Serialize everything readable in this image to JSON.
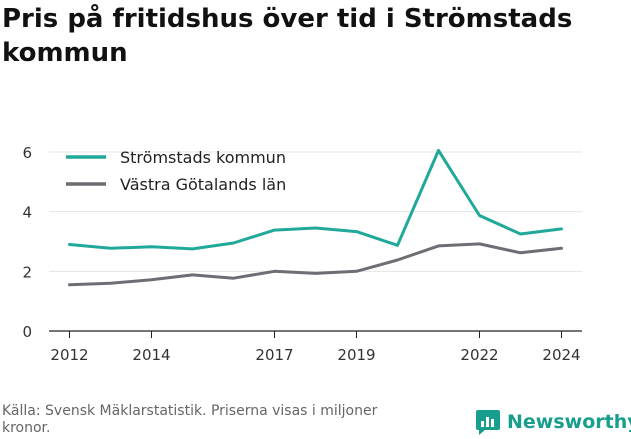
{
  "title": "Pris på fritidshus över tid i Strömstads kommun",
  "footer": "Källa: Svensk Mäklarstatistik. Priserna visas i miljoner kronor.",
  "brand": {
    "name": "Newsworthy",
    "icon": "newsworthy-logo-icon",
    "color": "#179e8d"
  },
  "chart_data": {
    "type": "line",
    "x_ticks": [
      2012,
      2014,
      2017,
      2019,
      2022,
      2024
    ],
    "y_ticks": [
      0,
      2,
      4,
      6
    ],
    "xlim": [
      2011.5,
      2024.5
    ],
    "ylim": [
      0,
      6.4
    ],
    "grid": true,
    "legend_position": "top-left",
    "x": [
      2012,
      2013,
      2014,
      2015,
      2016,
      2017,
      2018,
      2019,
      2020,
      2021,
      2022,
      2023,
      2024
    ],
    "series": [
      {
        "name": "Strömstads kommun",
        "color": "#20a99a",
        "values": [
          2.9,
          2.77,
          2.82,
          2.75,
          2.95,
          3.38,
          3.45,
          3.33,
          2.87,
          6.05,
          3.87,
          3.25,
          3.42
        ]
      },
      {
        "name": "Västra Götalands län",
        "color": "#6d6d74",
        "values": [
          1.55,
          1.6,
          1.72,
          1.88,
          1.77,
          2.0,
          1.93,
          2.0,
          2.38,
          2.85,
          2.92,
          2.62,
          2.77
        ]
      }
    ]
  }
}
